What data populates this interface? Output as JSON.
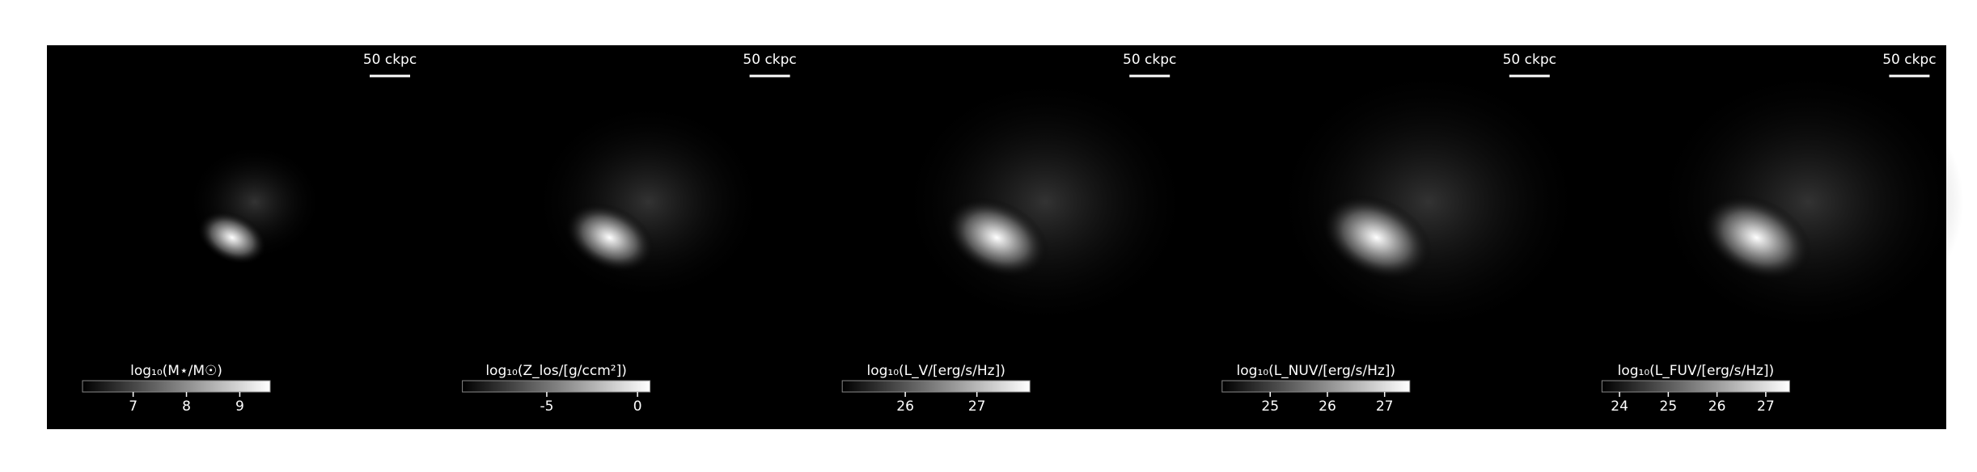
{
  "chart_data": [
    {
      "type": "image",
      "scalebar": "50 ckpc",
      "colorbar": {
        "label": "log₁₀(M⋆/M☉)",
        "lim": [
          6.05,
          9.57
        ],
        "ticks": [
          7,
          8,
          9
        ]
      }
    },
    {
      "type": "image",
      "scalebar": "50 ckpc",
      "colorbar": {
        "label": "log₁₀(Z_los/[g/ccm²])",
        "lim": [
          -9.65,
          0.69
        ],
        "ticks": [
          -5,
          0
        ]
      }
    },
    {
      "type": "image",
      "scalebar": "50 ckpc",
      "colorbar": {
        "label": "log₁₀(L_V/[erg/s/Hz])",
        "lim": [
          25.12,
          27.74
        ],
        "ticks": [
          26,
          27
        ]
      }
    },
    {
      "type": "image",
      "scalebar": "50 ckpc",
      "colorbar": {
        "label": "log₁₀(L_NUV/[erg/s/Hz])",
        "lim": [
          24.16,
          27.44
        ],
        "ticks": [
          25,
          26,
          27
        ]
      }
    },
    {
      "type": "image",
      "scalebar": "50 ckpc",
      "colorbar": {
        "label": "log₁₀(L_FUV/[erg/s/Hz])",
        "lim": [
          23.64,
          27.49
        ],
        "ticks": [
          24,
          25,
          26,
          27
        ]
      }
    }
  ]
}
